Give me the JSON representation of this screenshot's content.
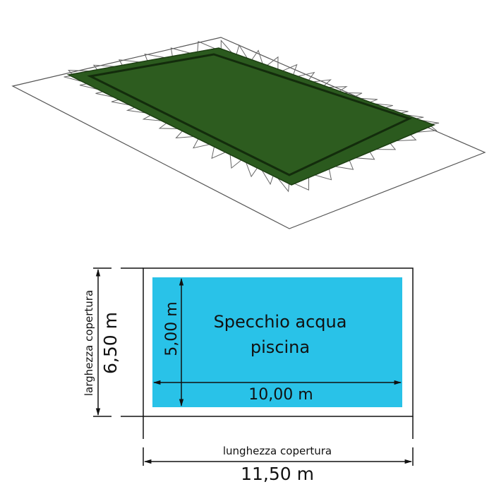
{
  "colors": {
    "cover_green": "#2b5a1e",
    "cover_edge": "#1d3f13",
    "water_blue": "#29c2e8",
    "line": "#111111",
    "ground_outline": "#555555"
  },
  "illustration": {
    "subject": "pool-winter-cover",
    "icon": "pool-cover-perspective-icon"
  },
  "diagram": {
    "water_label_line1": "Specchio acqua",
    "water_label_line2": "piscina",
    "water_width": "5,00 m",
    "water_length": "10,00 m",
    "cover_width_label": "larghezza copertura",
    "cover_width": "6,50 m",
    "cover_length_label": "lunghezza copertura",
    "cover_length": "11,50 m"
  }
}
